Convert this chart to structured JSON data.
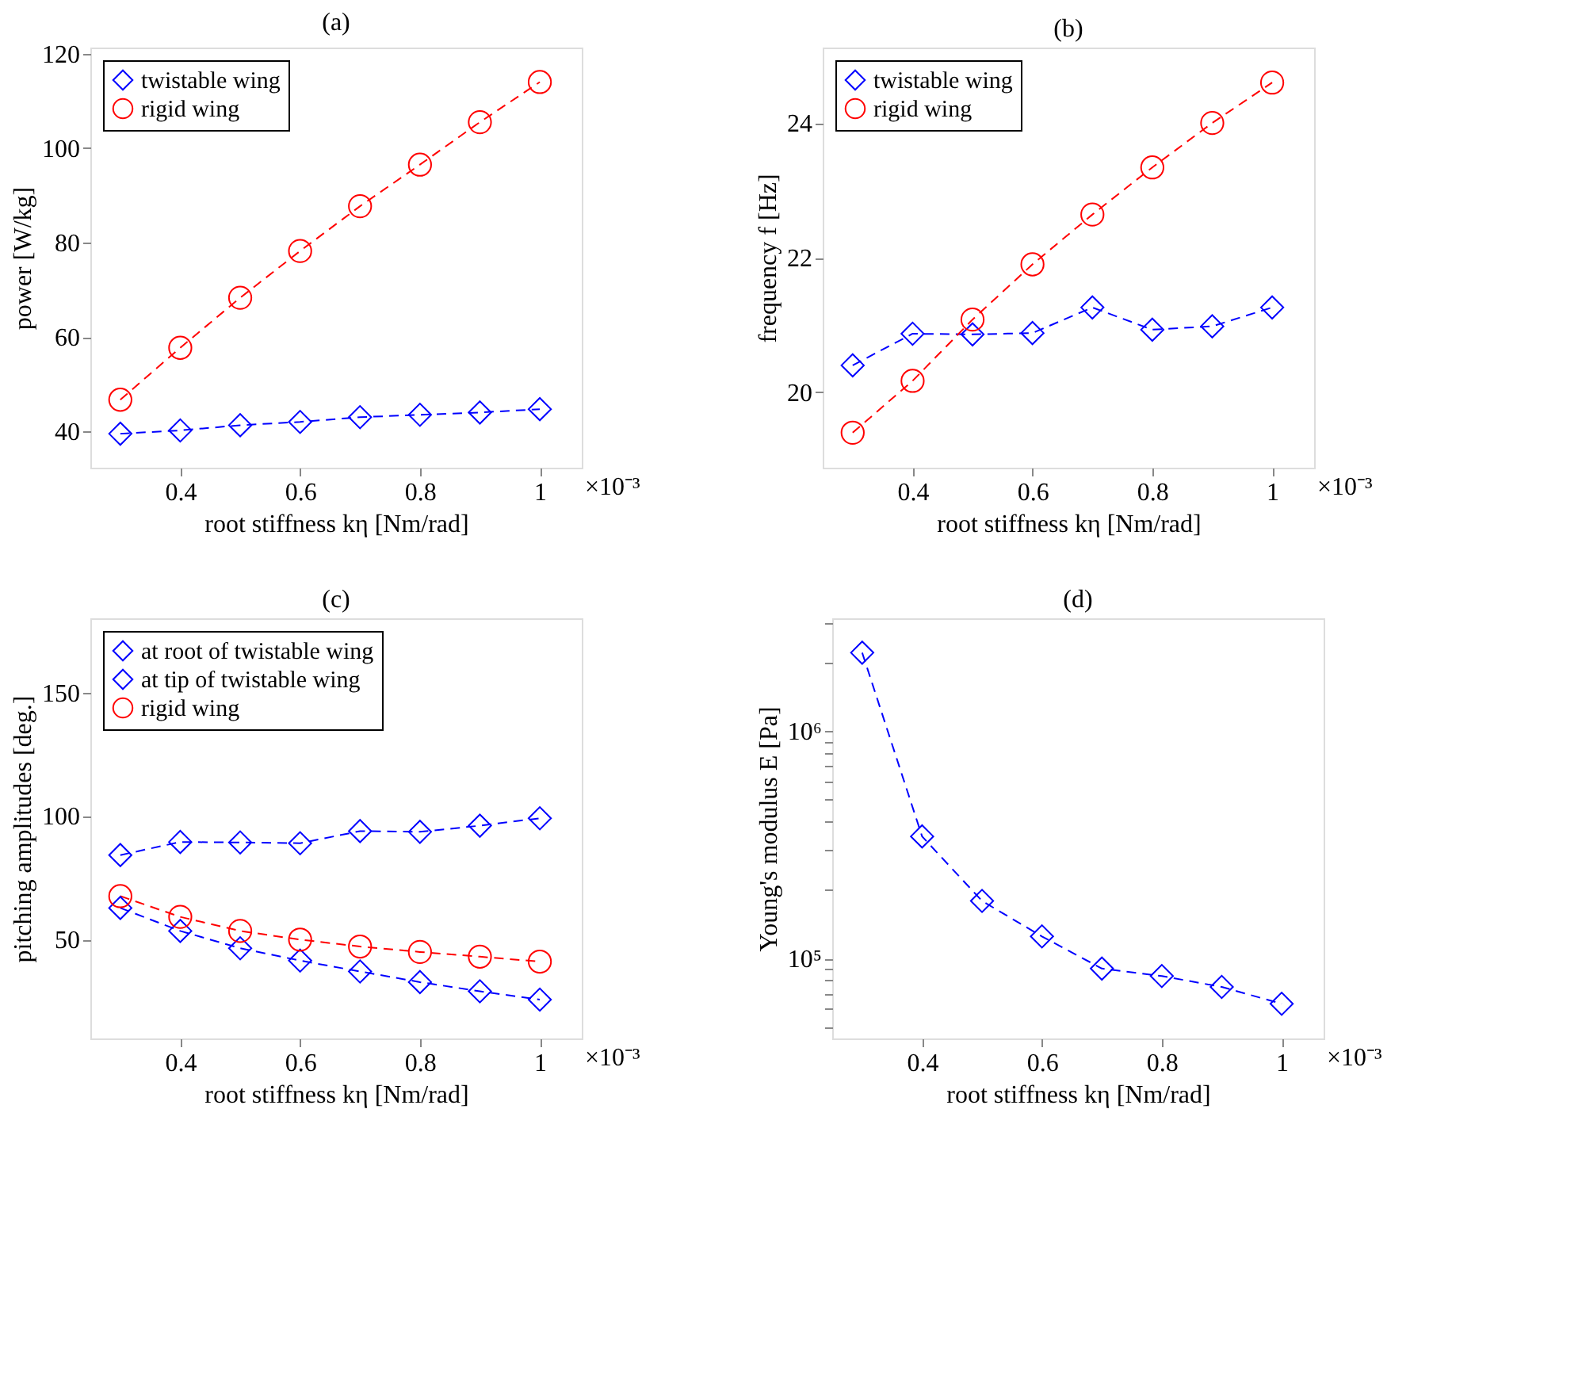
{
  "chart_data": [
    {
      "type": "line",
      "title": "(a)",
      "xlabel": "root stiffness kη [Nm/rad]",
      "ylabel": "power [W/kg]",
      "x": [
        0.3,
        0.4,
        0.5,
        0.6,
        0.7,
        0.8,
        0.9,
        1.0
      ],
      "xlim": [
        0.25,
        1.07
      ],
      "xticks": [
        0.4,
        0.6,
        0.8,
        1
      ],
      "ylim": [
        32.3,
        121.3
      ],
      "yticks": [
        40,
        60,
        80,
        100,
        120
      ],
      "legend": "top left",
      "annotations": [
        "×10⁻³"
      ],
      "series": [
        {
          "name": "twistable wing",
          "color": "#0000ff",
          "marker": "diamond",
          "line_style": "dashed",
          "values": [
            39.5,
            40.2,
            41.3,
            42.0,
            43.0,
            43.5,
            44.0,
            44.7
          ]
        },
        {
          "name": "rigid wing",
          "color": "#ff0000",
          "marker": "circle",
          "line_style": "dashed",
          "values": [
            46.7,
            57.7,
            68.3,
            78.2,
            87.7,
            96.5,
            105.5,
            114.0
          ]
        }
      ]
    },
    {
      "type": "line",
      "title": "(b)",
      "xlabel": "root stiffness kη [Nm/rad]",
      "ylabel": "frequency f [Hz]",
      "x": [
        0.3,
        0.4,
        0.5,
        0.6,
        0.7,
        0.8,
        0.9,
        1.0
      ],
      "xlim": [
        0.25,
        1.07
      ],
      "xticks": [
        0.4,
        0.6,
        0.8,
        1
      ],
      "ylim": [
        18.88,
        25.12
      ],
      "yticks": [
        20,
        22,
        24
      ],
      "legend": "top left",
      "annotations": [
        "×10⁻³"
      ],
      "series": [
        {
          "name": "twistable wing",
          "color": "#0000ff",
          "marker": "diamond",
          "line_style": "dashed",
          "values": [
            20.4,
            20.87,
            20.86,
            20.88,
            21.26,
            20.93,
            20.98,
            21.26
          ]
        },
        {
          "name": "rigid wing",
          "color": "#ff0000",
          "marker": "circle",
          "line_style": "dashed",
          "values": [
            19.4,
            20.17,
            21.08,
            21.9,
            22.64,
            23.34,
            24.0,
            24.6
          ]
        }
      ]
    },
    {
      "type": "line",
      "title": "(c)",
      "xlabel": "root stiffness kη [Nm/rad]",
      "ylabel": "pitching amplitudes [deg.]",
      "x": [
        0.3,
        0.4,
        0.5,
        0.6,
        0.7,
        0.8,
        0.9,
        1.0
      ],
      "xlim": [
        0.25,
        1.07
      ],
      "xticks": [
        0.4,
        0.6,
        0.8,
        1
      ],
      "ylim": [
        10,
        180
      ],
      "yticks": [
        50,
        100,
        150
      ],
      "legend": "top left",
      "annotations": [
        "×10⁻³"
      ],
      "series": [
        {
          "name": "at root of twistable wing",
          "color": "#0000ff",
          "marker": "diamond",
          "line_style": "dashed",
          "values": [
            62.8,
            53.5,
            46.5,
            41.5,
            37.1,
            32.8,
            29.1,
            25.7
          ]
        },
        {
          "name": "at tip of twistable wing",
          "color": "#0000ff",
          "marker": "diamond",
          "line_style": "dashed",
          "values": [
            84.2,
            89.5,
            89.3,
            89.0,
            93.9,
            93.6,
            96.1,
            99.1
          ]
        },
        {
          "name": "rigid wing",
          "color": "#ff0000",
          "marker": "circle",
          "line_style": "dashed",
          "values": [
            67.6,
            59.2,
            53.5,
            50.0,
            47.2,
            45.0,
            43.1,
            41.1
          ]
        }
      ]
    },
    {
      "type": "line",
      "title": "(d)",
      "xlabel": "root stiffness kη [Nm/rad]",
      "ylabel": "Young's modulus E [Pa]",
      "x": [
        0.3,
        0.4,
        0.5,
        0.6,
        0.7,
        0.8,
        0.9,
        1.0
      ],
      "xlim": [
        0.25,
        1.07
      ],
      "xticks": [
        0.4,
        0.6,
        0.8,
        1
      ],
      "log": "y",
      "ylim": [
        44500,
        3130000
      ],
      "yticks": [
        {
          "value": 50000,
          "label": null
        },
        {
          "value": 60000,
          "label": null
        },
        {
          "value": 70000,
          "label": null
        },
        {
          "value": 80000,
          "label": null
        },
        {
          "value": 90000,
          "label": null
        },
        {
          "value": 100000,
          "label": "10⁵"
        },
        {
          "value": 200000,
          "label": null
        },
        {
          "value": 300000,
          "label": null
        },
        {
          "value": 400000,
          "label": null
        },
        {
          "value": 500000,
          "label": null
        },
        {
          "value": 600000,
          "label": null
        },
        {
          "value": 700000,
          "label": null
        },
        {
          "value": 800000,
          "label": null
        },
        {
          "value": 900000,
          "label": null
        },
        {
          "value": 1000000,
          "label": "10⁶"
        },
        {
          "value": 2000000,
          "label": null
        },
        {
          "value": 3000000,
          "label": null
        }
      ],
      "legend": false,
      "annotations": [
        "×10⁻³"
      ],
      "series": [
        {
          "color": "#0000ff",
          "marker": "diamond",
          "line_style": "dashed",
          "values": [
            2210000,
            344000,
            179000,
            125000,
            90300,
            83700,
            75000,
            63200
          ]
        }
      ]
    }
  ]
}
